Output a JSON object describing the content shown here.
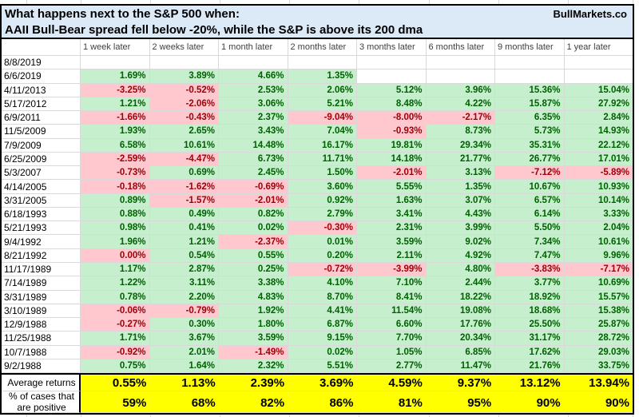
{
  "title": {
    "line1": "What happens next to the S&P 500 when:",
    "line2": "AAII Bull-Bear spread fell below -20%, while the S&P is above its 200 dma",
    "brand": "BullMarkets.co"
  },
  "colors": {
    "positive_bg": "#c6efce",
    "positive_text": "#006100",
    "negative_bg": "#ffc7ce",
    "negative_text": "#9c0006",
    "summary_bg": "#ffff00",
    "title_bg": "#dce9f7",
    "gridline": "#d9d9d9"
  },
  "table": {
    "columns": [
      "1 week later",
      "2 weeks later",
      "1 month later",
      "2 months later",
      "3 months later",
      "6 months later",
      "9 months later",
      "1 year later"
    ],
    "rows": [
      {
        "date": "8/8/2019",
        "cells": [
          [
            "",
            ""
          ],
          [
            "",
            ""
          ],
          [
            "",
            ""
          ],
          [
            "",
            ""
          ],
          [
            "",
            ""
          ],
          [
            "",
            ""
          ],
          [
            "",
            ""
          ],
          [
            "",
            ""
          ]
        ]
      },
      {
        "date": "6/6/2019",
        "cells": [
          [
            "1.69%",
            "pos"
          ],
          [
            "3.89%",
            "pos"
          ],
          [
            "4.66%",
            "pos"
          ],
          [
            "1.35%",
            "pos"
          ],
          [
            "",
            ""
          ],
          [
            "",
            ""
          ],
          [
            "",
            ""
          ],
          [
            "",
            ""
          ]
        ]
      },
      {
        "date": "4/11/2013",
        "cells": [
          [
            "-3.25%",
            "neg"
          ],
          [
            "-0.52%",
            "neg"
          ],
          [
            "2.53%",
            "pos"
          ],
          [
            "2.06%",
            "pos"
          ],
          [
            "5.12%",
            "pos"
          ],
          [
            "3.96%",
            "pos"
          ],
          [
            "15.36%",
            "pos"
          ],
          [
            "15.04%",
            "pos"
          ]
        ]
      },
      {
        "date": "5/17/2012",
        "cells": [
          [
            "1.21%",
            "pos"
          ],
          [
            "-2.06%",
            "neg"
          ],
          [
            "3.06%",
            "pos"
          ],
          [
            "5.21%",
            "pos"
          ],
          [
            "8.48%",
            "pos"
          ],
          [
            "4.22%",
            "pos"
          ],
          [
            "15.87%",
            "pos"
          ],
          [
            "27.92%",
            "pos"
          ]
        ]
      },
      {
        "date": "6/9/2011",
        "cells": [
          [
            "-1.66%",
            "neg"
          ],
          [
            "-0.43%",
            "neg"
          ],
          [
            "2.37%",
            "pos"
          ],
          [
            "-9.04%",
            "neg"
          ],
          [
            "-8.00%",
            "neg"
          ],
          [
            "-2.17%",
            "neg"
          ],
          [
            "6.35%",
            "pos"
          ],
          [
            "2.84%",
            "pos"
          ]
        ]
      },
      {
        "date": "11/5/2009",
        "cells": [
          [
            "1.93%",
            "pos"
          ],
          [
            "2.65%",
            "pos"
          ],
          [
            "3.43%",
            "pos"
          ],
          [
            "7.04%",
            "pos"
          ],
          [
            "-0.93%",
            "neg"
          ],
          [
            "8.73%",
            "pos"
          ],
          [
            "5.73%",
            "pos"
          ],
          [
            "14.93%",
            "pos"
          ]
        ]
      },
      {
        "date": "7/9/2009",
        "cells": [
          [
            "6.58%",
            "pos"
          ],
          [
            "10.61%",
            "pos"
          ],
          [
            "14.48%",
            "pos"
          ],
          [
            "16.17%",
            "pos"
          ],
          [
            "19.81%",
            "pos"
          ],
          [
            "29.34%",
            "pos"
          ],
          [
            "35.31%",
            "pos"
          ],
          [
            "22.12%",
            "pos"
          ]
        ]
      },
      {
        "date": "6/25/2009",
        "cells": [
          [
            "-2.59%",
            "neg"
          ],
          [
            "-4.47%",
            "neg"
          ],
          [
            "6.73%",
            "pos"
          ],
          [
            "11.71%",
            "pos"
          ],
          [
            "14.18%",
            "pos"
          ],
          [
            "21.77%",
            "pos"
          ],
          [
            "26.77%",
            "pos"
          ],
          [
            "17.01%",
            "pos"
          ]
        ]
      },
      {
        "date": "5/3/2007",
        "cells": [
          [
            "-0.73%",
            "neg"
          ],
          [
            "0.69%",
            "pos"
          ],
          [
            "2.45%",
            "pos"
          ],
          [
            "1.50%",
            "pos"
          ],
          [
            "-2.01%",
            "neg"
          ],
          [
            "3.13%",
            "pos"
          ],
          [
            "-7.12%",
            "neg"
          ],
          [
            "-5.89%",
            "neg"
          ]
        ]
      },
      {
        "date": "4/14/2005",
        "cells": [
          [
            "-0.18%",
            "neg"
          ],
          [
            "-1.62%",
            "neg"
          ],
          [
            "-0.69%",
            "neg"
          ],
          [
            "3.60%",
            "pos"
          ],
          [
            "5.55%",
            "pos"
          ],
          [
            "1.35%",
            "pos"
          ],
          [
            "10.67%",
            "pos"
          ],
          [
            "10.93%",
            "pos"
          ]
        ]
      },
      {
        "date": "3/31/2005",
        "cells": [
          [
            "0.89%",
            "pos"
          ],
          [
            "-1.57%",
            "neg"
          ],
          [
            "-2.01%",
            "neg"
          ],
          [
            "0.92%",
            "pos"
          ],
          [
            "1.63%",
            "pos"
          ],
          [
            "3.07%",
            "pos"
          ],
          [
            "6.57%",
            "pos"
          ],
          [
            "10.14%",
            "pos"
          ]
        ]
      },
      {
        "date": "6/18/1993",
        "cells": [
          [
            "0.88%",
            "pos"
          ],
          [
            "0.49%",
            "pos"
          ],
          [
            "0.82%",
            "pos"
          ],
          [
            "2.79%",
            "pos"
          ],
          [
            "3.41%",
            "pos"
          ],
          [
            "4.43%",
            "pos"
          ],
          [
            "6.14%",
            "pos"
          ],
          [
            "3.33%",
            "pos"
          ]
        ]
      },
      {
        "date": "5/21/1993",
        "cells": [
          [
            "0.98%",
            "pos"
          ],
          [
            "0.41%",
            "pos"
          ],
          [
            "0.02%",
            "pos"
          ],
          [
            "-0.30%",
            "neg"
          ],
          [
            "2.31%",
            "pos"
          ],
          [
            "3.99%",
            "pos"
          ],
          [
            "5.50%",
            "pos"
          ],
          [
            "2.04%",
            "pos"
          ]
        ]
      },
      {
        "date": "9/4/1992",
        "cells": [
          [
            "1.96%",
            "pos"
          ],
          [
            "1.21%",
            "pos"
          ],
          [
            "-2.37%",
            "neg"
          ],
          [
            "0.01%",
            "pos"
          ],
          [
            "3.59%",
            "pos"
          ],
          [
            "9.02%",
            "pos"
          ],
          [
            "7.34%",
            "pos"
          ],
          [
            "10.61%",
            "pos"
          ]
        ]
      },
      {
        "date": "8/21/1992",
        "cells": [
          [
            "0.00%",
            "neg"
          ],
          [
            "0.54%",
            "pos"
          ],
          [
            "0.55%",
            "pos"
          ],
          [
            "0.20%",
            "pos"
          ],
          [
            "2.11%",
            "pos"
          ],
          [
            "4.92%",
            "pos"
          ],
          [
            "7.47%",
            "pos"
          ],
          [
            "9.96%",
            "pos"
          ]
        ]
      },
      {
        "date": "11/17/1989",
        "cells": [
          [
            "1.17%",
            "pos"
          ],
          [
            "2.87%",
            "pos"
          ],
          [
            "0.25%",
            "pos"
          ],
          [
            "-0.72%",
            "neg"
          ],
          [
            "-3.99%",
            "neg"
          ],
          [
            "4.80%",
            "pos"
          ],
          [
            "-3.83%",
            "neg"
          ],
          [
            "-7.17%",
            "neg"
          ]
        ]
      },
      {
        "date": "7/14/1989",
        "cells": [
          [
            "1.22%",
            "pos"
          ],
          [
            "3.11%",
            "pos"
          ],
          [
            "3.38%",
            "pos"
          ],
          [
            "4.10%",
            "pos"
          ],
          [
            "7.10%",
            "pos"
          ],
          [
            "2.44%",
            "pos"
          ],
          [
            "3.77%",
            "pos"
          ],
          [
            "10.69%",
            "pos"
          ]
        ]
      },
      {
        "date": "3/31/1989",
        "cells": [
          [
            "0.78%",
            "pos"
          ],
          [
            "2.20%",
            "pos"
          ],
          [
            "4.83%",
            "pos"
          ],
          [
            "8.70%",
            "pos"
          ],
          [
            "8.41%",
            "pos"
          ],
          [
            "18.22%",
            "pos"
          ],
          [
            "18.92%",
            "pos"
          ],
          [
            "15.57%",
            "pos"
          ]
        ]
      },
      {
        "date": "3/10/1989",
        "cells": [
          [
            "-0.06%",
            "neg"
          ],
          [
            "-0.79%",
            "neg"
          ],
          [
            "1.92%",
            "pos"
          ],
          [
            "4.41%",
            "pos"
          ],
          [
            "11.54%",
            "pos"
          ],
          [
            "19.08%",
            "pos"
          ],
          [
            "18.68%",
            "pos"
          ],
          [
            "15.38%",
            "pos"
          ]
        ]
      },
      {
        "date": "12/9/1988",
        "cells": [
          [
            "-0.27%",
            "neg"
          ],
          [
            "0.30%",
            "pos"
          ],
          [
            "1.80%",
            "pos"
          ],
          [
            "6.87%",
            "pos"
          ],
          [
            "6.60%",
            "pos"
          ],
          [
            "17.76%",
            "pos"
          ],
          [
            "25.50%",
            "pos"
          ],
          [
            "25.87%",
            "pos"
          ]
        ]
      },
      {
        "date": "11/25/1988",
        "cells": [
          [
            "1.71%",
            "pos"
          ],
          [
            "3.67%",
            "pos"
          ],
          [
            "3.59%",
            "pos"
          ],
          [
            "9.15%",
            "pos"
          ],
          [
            "7.70%",
            "pos"
          ],
          [
            "20.34%",
            "pos"
          ],
          [
            "31.17%",
            "pos"
          ],
          [
            "28.72%",
            "pos"
          ]
        ]
      },
      {
        "date": "10/7/1988",
        "cells": [
          [
            "-0.92%",
            "neg"
          ],
          [
            "2.01%",
            "pos"
          ],
          [
            "-1.49%",
            "neg"
          ],
          [
            "0.02%",
            "pos"
          ],
          [
            "1.05%",
            "pos"
          ],
          [
            "6.85%",
            "pos"
          ],
          [
            "17.62%",
            "pos"
          ],
          [
            "29.03%",
            "pos"
          ]
        ]
      },
      {
        "date": "9/2/1988",
        "cells": [
          [
            "0.75%",
            "pos"
          ],
          [
            "1.64%",
            "pos"
          ],
          [
            "2.32%",
            "pos"
          ],
          [
            "5.51%",
            "pos"
          ],
          [
            "2.77%",
            "pos"
          ],
          [
            "11.47%",
            "pos"
          ],
          [
            "21.76%",
            "pos"
          ],
          [
            "33.75%",
            "pos"
          ]
        ]
      }
    ]
  },
  "summary": {
    "average_label": "Average returns",
    "average_values": [
      "0.55%",
      "1.13%",
      "2.39%",
      "3.69%",
      "4.59%",
      "9.37%",
      "13.12%",
      "13.94%"
    ],
    "positive_label_lines": [
      "% of cases that",
      "are positive"
    ],
    "positive_values": [
      "59%",
      "68%",
      "82%",
      "86%",
      "81%",
      "95%",
      "90%",
      "90%"
    ]
  }
}
